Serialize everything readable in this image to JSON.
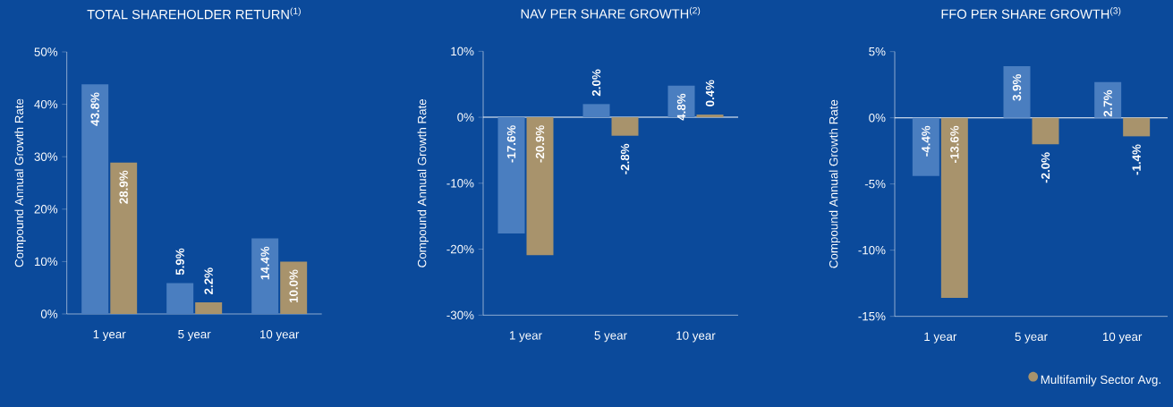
{
  "chart_data": [
    {
      "type": "bar",
      "title": "TOTAL SHAREHOLDER RETURN$^{(1)}$",
      "ylabel": "Compound Annual Growth Rate",
      "categories": [
        "1 year",
        "5 year",
        "10 year"
      ],
      "series": [
        {
          "color": "#4a7ec0",
          "values": [
            43.8,
            5.9,
            14.4
          ],
          "value_labels": [
            "43.8%",
            "5.9%",
            "14.4%"
          ]
        },
        {
          "color": "#a8936c",
          "values": [
            28.9,
            2.2,
            10.0
          ],
          "value_labels": [
            "28.9%",
            "2.2%",
            "10.0%"
          ]
        }
      ],
      "ylim": [
        0,
        50
      ],
      "yticks": [
        {
          "value": 0,
          "label": "0%"
        },
        {
          "value": 10,
          "label": "10%"
        },
        {
          "value": 20,
          "label": "20%"
        },
        {
          "value": 30,
          "label": "30%"
        },
        {
          "value": 40,
          "label": "40%"
        },
        {
          "value": 50,
          "label": "50%"
        }
      ]
    },
    {
      "type": "bar",
      "title": "NAV PER SHARE GROWTH$^{(2)}$",
      "ylabel": "Compound Annual Growth Rate",
      "categories": [
        "1 year",
        "5 year",
        "10 year"
      ],
      "series": [
        {
          "color": "#4a7ec0",
          "values": [
            -17.6,
            2.0,
            4.8
          ],
          "value_labels": [
            "-17.6%",
            "2.0%",
            "4.8%"
          ]
        },
        {
          "color": "#a8936c",
          "values": [
            -20.9,
            -2.8,
            0.4
          ],
          "value_labels": [
            "-20.9%",
            "-2.8%",
            "0.4%"
          ]
        }
      ],
      "ylim": [
        -30,
        10
      ],
      "yticks": [
        {
          "value": -30,
          "label": "-30%"
        },
        {
          "value": -20,
          "label": "-20%"
        },
        {
          "value": -10,
          "label": "-10%"
        },
        {
          "value": 0,
          "label": "0%"
        },
        {
          "value": 10,
          "label": "10%"
        }
      ]
    },
    {
      "type": "bar",
      "title": "FFO PER SHARE GROWTH$^{(3)}$",
      "ylabel": "Compound Annual Growth Rate",
      "categories": [
        "1 year",
        "5 year",
        "10 year"
      ],
      "series": [
        {
          "color": "#4a7ec0",
          "values": [
            -4.4,
            3.9,
            2.7
          ],
          "value_labels": [
            "-4.4%",
            "3.9%",
            "2.7%"
          ]
        },
        {
          "name": "Multifamily Sector Avg.",
          "color": "#a8936c",
          "values": [
            -13.6,
            -2.0,
            -1.4
          ],
          "value_labels": [
            "-13.6%",
            "-2.0%",
            "-1.4%"
          ]
        }
      ],
      "ylim": [
        -15,
        5
      ],
      "yticks": [
        {
          "value": -15,
          "label": "-15%"
        },
        {
          "value": -10,
          "label": "-10%"
        },
        {
          "value": -5,
          "label": "-5%"
        },
        {
          "value": 0,
          "label": "0%"
        },
        {
          "value": 5,
          "label": "5%"
        }
      ],
      "legend": "bottom"
    }
  ]
}
